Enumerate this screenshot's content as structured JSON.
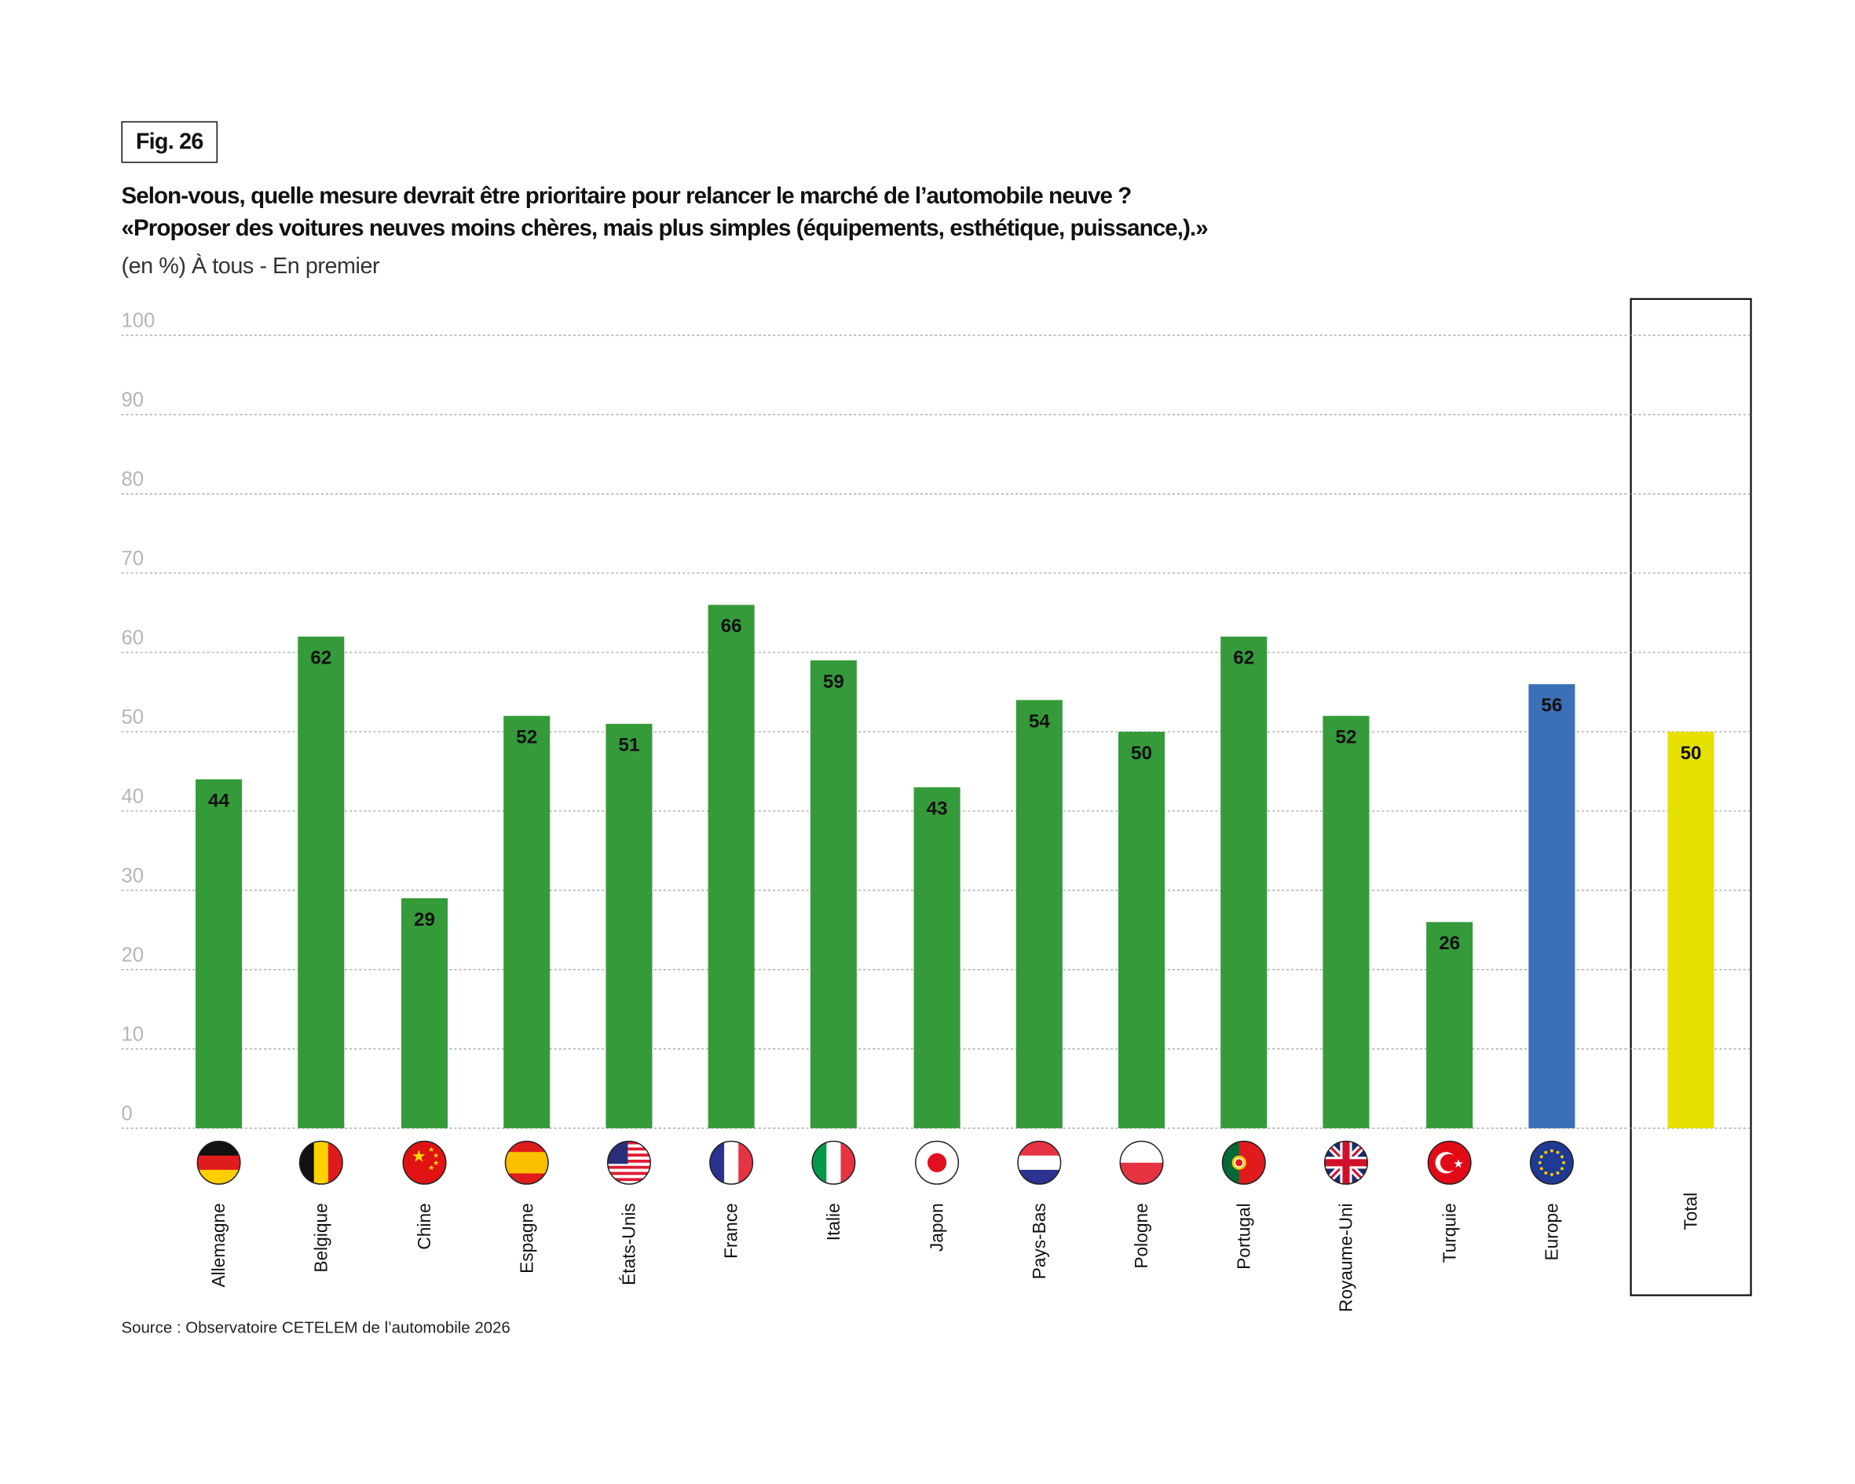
{
  "figure_label": "Fig. 26",
  "title_line1": "Selon-vous, quelle mesure devrait être prioritaire pour relancer le marché de l’automobile neuve ?",
  "title_line2": "«Proposer des voitures neuves moins chères, mais plus simples (équipements, esthétique, puissance,).»",
  "subtitle": "(en %) À tous - En premier",
  "source": "Source : Observatoire CETELEM de l’automobile 2026",
  "colors": {
    "country": "#359a3a",
    "europe": "#3b6fb6",
    "total": "#e6e000",
    "grid": "#9a9a9a"
  },
  "chart_data": {
    "type": "bar",
    "title": "Selon-vous, quelle mesure devrait être prioritaire pour relancer le marché de l’automobile neuve ?",
    "ylabel": "%",
    "ylim": [
      0,
      100
    ],
    "yticks": [
      "0",
      "10",
      "20",
      "30",
      "40",
      "50",
      "60",
      "70",
      "80",
      "90",
      "100"
    ],
    "grid": true,
    "categories": [
      "Allemagne",
      "Belgique",
      "Chine",
      "Espagne",
      "États-Unis",
      "France",
      "Italie",
      "Japon",
      "Pays-Bas",
      "Pologne",
      "Portugal",
      "Royaume-Uni",
      "Turquie",
      "Europe",
      "Total"
    ],
    "values": [
      44,
      62,
      29,
      52,
      51,
      66,
      59,
      43,
      54,
      50,
      62,
      52,
      26,
      56,
      50
    ],
    "flags": [
      "de",
      "be",
      "cn",
      "es",
      "us",
      "fr",
      "it",
      "jp",
      "nl",
      "pl",
      "pt",
      "gb",
      "tr",
      "eu",
      null
    ]
  }
}
